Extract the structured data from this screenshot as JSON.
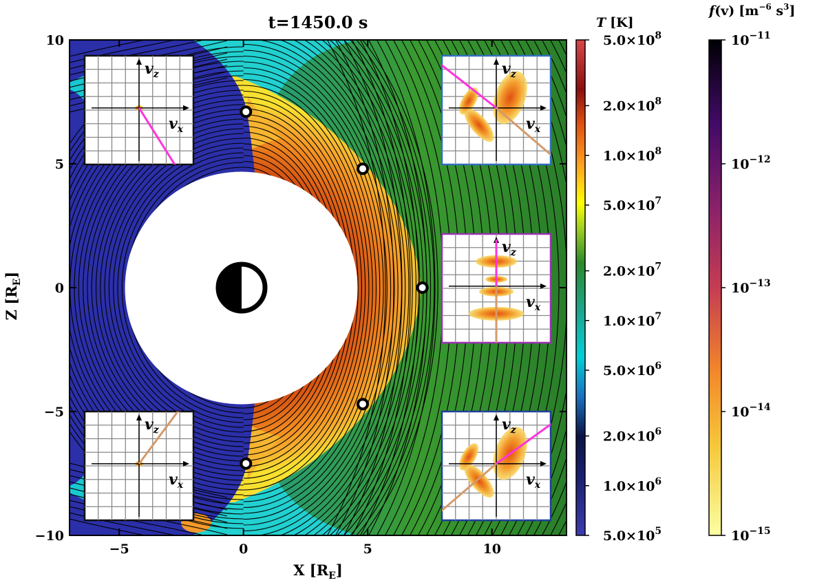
{
  "chart_data": {
    "type": "heatmap",
    "title": "t=1450.0 s",
    "xlabel": "X [R",
    "xlabel_sub": "E",
    "xlabel_close": "]",
    "ylabel": "Z [R",
    "ylabel_sub": "E",
    "ylabel_close": "]",
    "xlim": [
      -7,
      13
    ],
    "ylim": [
      -10,
      10
    ],
    "x_ticks": [
      {
        "value": -5,
        "label": "−5"
      },
      {
        "value": 0,
        "label": "0"
      },
      {
        "value": 5,
        "label": "5"
      },
      {
        "value": 10,
        "label": "10"
      }
    ],
    "y_ticks": [
      {
        "value": 10,
        "label": "10"
      },
      {
        "value": 5,
        "label": "5"
      },
      {
        "value": 0,
        "label": "0"
      },
      {
        "value": -5,
        "label": "−5"
      },
      {
        "value": -10,
        "label": "−10"
      }
    ],
    "inner_boundary_radius": 4.7,
    "vdf_sample_points": [
      {
        "x": 0.1,
        "z": 7.1
      },
      {
        "x": 4.8,
        "z": 4.8
      },
      {
        "x": 7.2,
        "z": 0.0
      },
      {
        "x": 4.8,
        "z": -4.7
      },
      {
        "x": 0.1,
        "z": -7.1
      }
    ],
    "temperature_colorbar": {
      "label_var": "T",
      "label_unit": "[K]",
      "scale": "log",
      "range": [
        500000.0,
        500000000.0
      ],
      "ticks": [
        {
          "value": 500000000.0,
          "mant": "5.0×10",
          "exp": "8"
        },
        {
          "value": 200000000.0,
          "mant": "2.0×10",
          "exp": "8"
        },
        {
          "value": 100000000.0,
          "mant": "1.0×10",
          "exp": "8"
        },
        {
          "value": 50000000.0,
          "mant": "5.0×10",
          "exp": "7"
        },
        {
          "value": 20000000.0,
          "mant": "2.0×10",
          "exp": "7"
        },
        {
          "value": 10000000.0,
          "mant": "1.0×10",
          "exp": "7"
        },
        {
          "value": 5000000.0,
          "mant": "5.0×10",
          "exp": "6"
        },
        {
          "value": 2000000.0,
          "mant": "2.0×10",
          "exp": "6"
        },
        {
          "value": 1000000.0,
          "mant": "1.0×10",
          "exp": "6"
        },
        {
          "value": 500000.0,
          "mant": "5.0×10",
          "exp": "5"
        }
      ],
      "colors": [
        "#3d3cb0",
        "#0c1445",
        "#00d0d8",
        "#1aa890",
        "#2a8a2a",
        "#ffff00",
        "#ffa020",
        "#e05010",
        "#8a1010",
        "#d84848"
      ]
    },
    "vdf_colorbar": {
      "label_var": "f",
      "label_arg": "(v)",
      "label_unit_open": "[m",
      "label_unit_exp1": "−6",
      "label_unit_mid": " s",
      "label_unit_exp2": "3",
      "label_unit_close": "]",
      "scale": "log",
      "range": [
        1e-15,
        1e-11
      ],
      "ticks": [
        {
          "value": 1e-11,
          "mant": "10",
          "exp": "−11"
        },
        {
          "value": 1e-12,
          "mant": "10",
          "exp": "−12"
        },
        {
          "value": 1e-13,
          "mant": "10",
          "exp": "−13"
        },
        {
          "value": 1e-14,
          "mant": "10",
          "exp": "−14"
        },
        {
          "value": 1e-15,
          "mant": "10",
          "exp": "−15"
        }
      ],
      "colors": [
        "#fcffa4",
        "#f6b12e",
        "#f0711f",
        "#c53c52",
        "#8a226a",
        "#420a68",
        "#000004"
      ]
    },
    "insets": [
      {
        "id": "top-left",
        "border": "#111111",
        "vx_label": "v",
        "vx_sub": "x",
        "vz_label": "v",
        "vz_sub": "z",
        "pink_dir": 1,
        "brown_dir": 0
      },
      {
        "id": "top-right",
        "border": "#2f6fc0",
        "vx_label": "v",
        "vx_sub": "x",
        "vz_label": "v",
        "vz_sub": "z",
        "pink_dir": -1,
        "brown_dir": 1
      },
      {
        "id": "middle-right",
        "border": "#9b2fb5",
        "vx_label": "v",
        "vx_sub": "x",
        "vz_label": "v",
        "vz_sub": "z",
        "pink_dir": 0,
        "brown_dir": 0
      },
      {
        "id": "bottom-left",
        "border": "#111111",
        "vx_label": "v",
        "vx_sub": "x",
        "vz_label": "v",
        "vz_sub": "z",
        "pink_dir": 0,
        "brown_dir": -1
      },
      {
        "id": "bottom-right",
        "border": "#1f3f9a",
        "vx_label": "v",
        "vx_sub": "x",
        "vz_label": "v",
        "vz_sub": "z",
        "pink_dir": -1,
        "brown_dir": 1
      }
    ],
    "colors": {
      "magnetosphere": "#2b2fa8",
      "magnetosheath_hot": "#f0a020",
      "solar_wind": "#2e8b2e",
      "cold_lobe": "#20d5d5",
      "field_line": "#000000",
      "pink_line": "#ff33dd",
      "brown_line": "#d49a6a"
    }
  }
}
